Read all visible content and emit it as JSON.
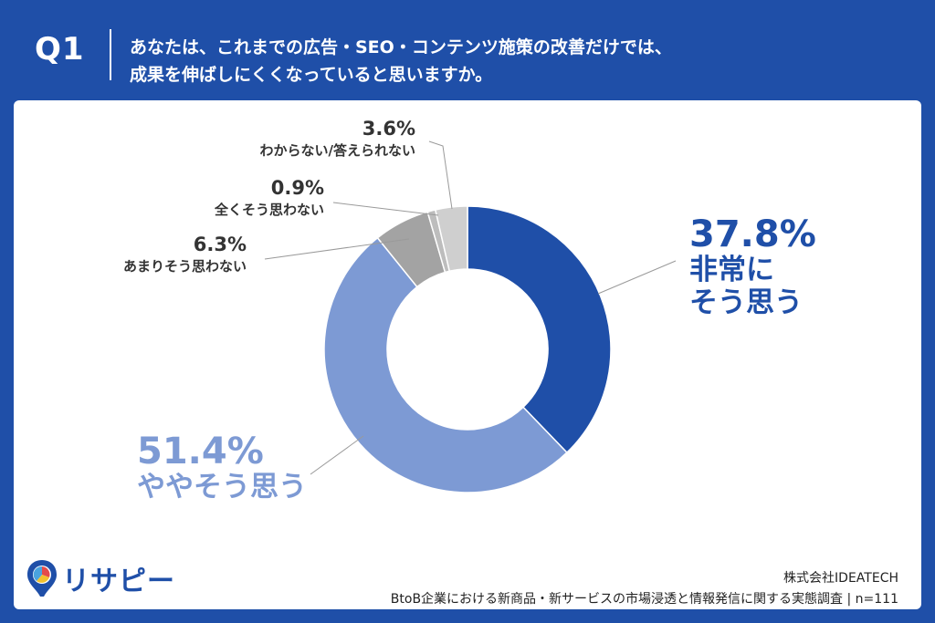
{
  "header": {
    "q_label": "Q1",
    "question_line1": "あなたは、これまでの広告・SEO・コンテンツ施策の改善だけでは、",
    "question_line2": "成果を伸ばしにくくなっていると思いますか。"
  },
  "chart_data": {
    "type": "pie",
    "donut": true,
    "slices": [
      {
        "label_lines": [
          "非常に",
          "そう思う"
        ],
        "pct_text": "37.8%",
        "value": 37.8,
        "color": "#1f4fa8"
      },
      {
        "label_lines": [
          "ややそう思う"
        ],
        "pct_text": "51.4%",
        "value": 51.4,
        "color": "#7d9ad4"
      },
      {
        "label_lines": [
          "あまりそう思わない"
        ],
        "pct_text": "6.3%",
        "value": 6.3,
        "color": "#a3a3a3"
      },
      {
        "label_lines": [
          "全くそう思わない"
        ],
        "pct_text": "0.9%",
        "value": 0.9,
        "color": "#bdbdbd"
      },
      {
        "label_lines": [
          "わからない/答えられない"
        ],
        "pct_text": "3.6%",
        "value": 3.6,
        "color": "#cfcfcf"
      }
    ]
  },
  "footer": {
    "logo_text": "リサピー",
    "company": "株式会社IDEATECH",
    "survey": "BtoB企業における新商品・新サービスの市場浸透と情報発信に関する実態調査 | n=111"
  },
  "colors": {
    "brand": "#1f4fa8",
    "secondary": "#7d9ad4"
  }
}
